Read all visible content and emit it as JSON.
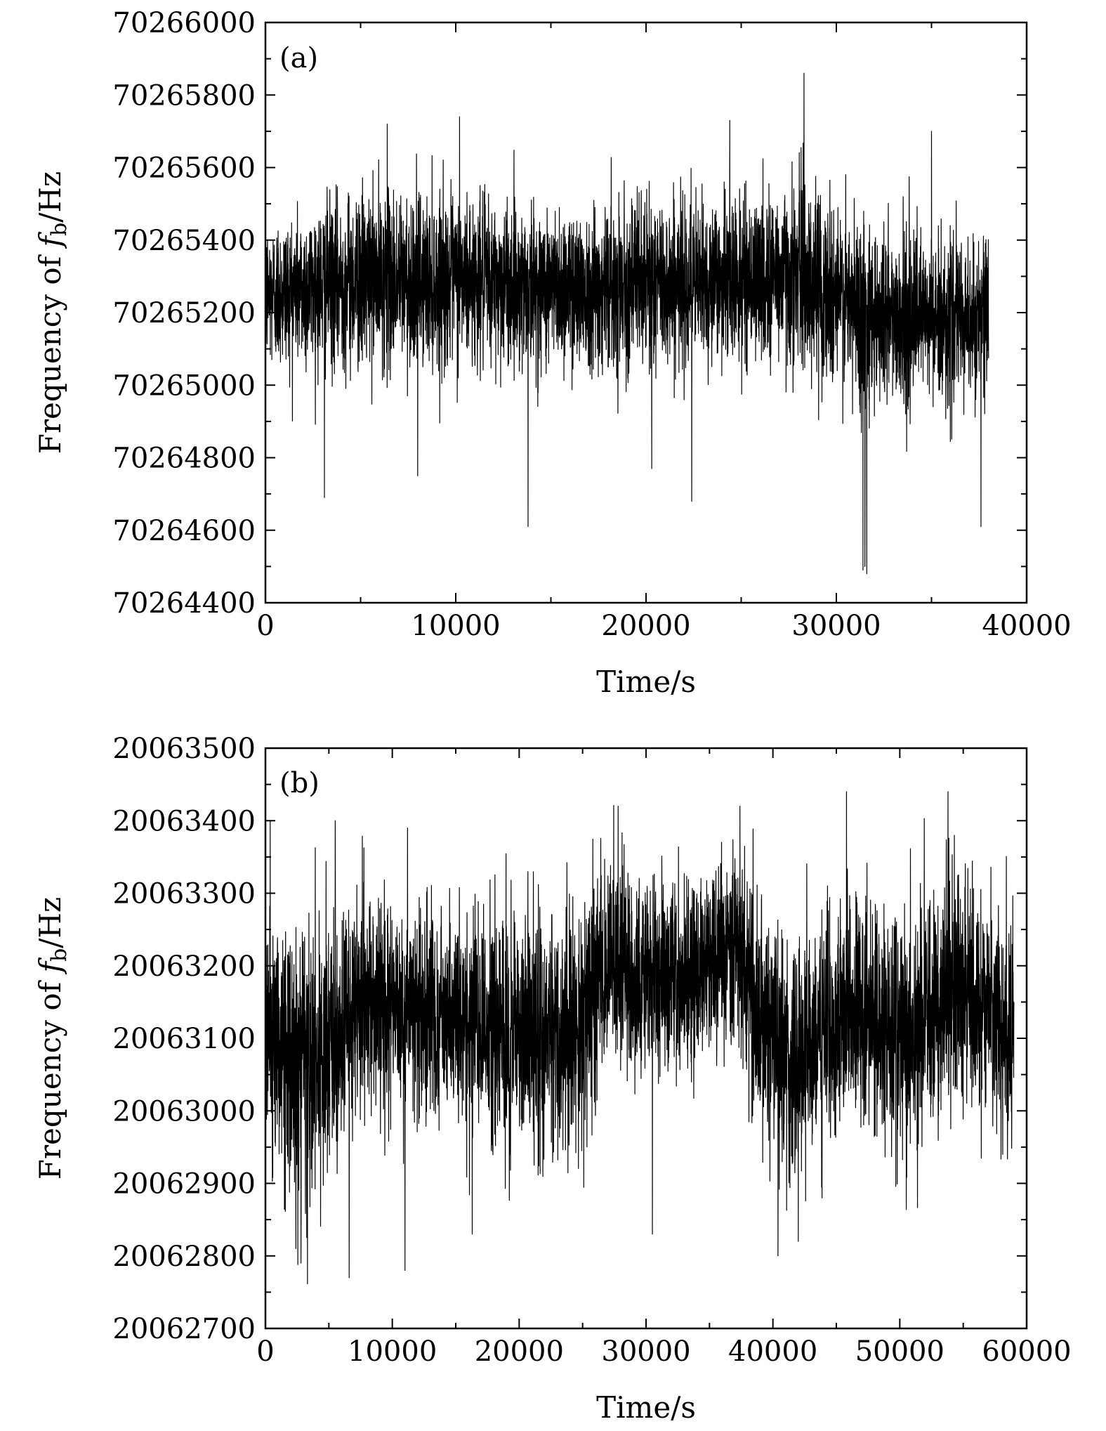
{
  "chart_data": [
    {
      "type": "line",
      "panel_label": "(a)",
      "xlabel": "Time/s",
      "ylabel_prefix": "Frequency of ",
      "ylabel_var": "f",
      "ylabel_sub": "b",
      "ylabel_unit": "/Hz",
      "xlim": [
        0,
        40000
      ],
      "ylim": [
        70264400,
        70266000
      ],
      "x_ticks": [
        "0",
        "10000",
        "20000",
        "30000",
        "40000"
      ],
      "y_ticks": [
        "70264400",
        "70264600",
        "70264800",
        "70265000",
        "70265200",
        "70265400",
        "70265600",
        "70265800",
        "70266000"
      ],
      "color": "#000000",
      "series": [
        {
          "x_range": [
            0,
            38000
          ],
          "mean": 70265250,
          "noise_amplitude": 150,
          "envelope": [
            [
              0,
              70265250,
              130
            ],
            [
              5000,
              70265290,
              160
            ],
            [
              10000,
              70265290,
              150
            ],
            [
              15000,
              70265270,
              140
            ],
            [
              20000,
              70265280,
              150
            ],
            [
              25000,
              70265290,
              140
            ],
            [
              28000,
              70265310,
              170
            ],
            [
              31000,
              70265210,
              170
            ],
            [
              34000,
              70265180,
              150
            ],
            [
              38000,
              70265180,
              140
            ]
          ],
          "spikes": [
            [
              28300,
              70265860
            ],
            [
              10200,
              70265740
            ],
            [
              24400,
              70265730
            ],
            [
              6400,
              70265720
            ],
            [
              35000,
              70265700
            ],
            [
              13800,
              70264610
            ],
            [
              22400,
              70264680
            ],
            [
              3100,
              70264690
            ],
            [
              37600,
              70264610
            ],
            [
              31400,
              70264490
            ],
            [
              31600,
              70264480
            ],
            [
              31500,
              70264500
            ],
            [
              8000,
              70264750
            ],
            [
              20300,
              70264770
            ]
          ]
        }
      ]
    },
    {
      "type": "line",
      "panel_label": "(b)",
      "xlabel": "Time/s",
      "ylabel_prefix": "Frequency of ",
      "ylabel_var": "f",
      "ylabel_sub": "b",
      "ylabel_unit": "/Hz",
      "xlim": [
        0,
        60000
      ],
      "ylim": [
        20062700,
        20063500
      ],
      "x_ticks": [
        "0",
        "10000",
        "20000",
        "30000",
        "40000",
        "50000",
        "60000"
      ],
      "y_ticks": [
        "20062700",
        "20062800",
        "20062900",
        "20063000",
        "20063100",
        "20063200",
        "20063300",
        "20063400",
        "20063500"
      ],
      "color": "#000000",
      "series": [
        {
          "x_range": [
            0,
            59000
          ],
          "mean": 20063150,
          "noise_amplitude": 100,
          "envelope": [
            [
              0,
              20063120,
              110
            ],
            [
              3000,
              20063040,
              120
            ],
            [
              8000,
              20063150,
              100
            ],
            [
              15000,
              20063120,
              100
            ],
            [
              24000,
              20063100,
              110
            ],
            [
              27000,
              20063200,
              90
            ],
            [
              33000,
              20063180,
              90
            ],
            [
              37000,
              20063220,
              90
            ],
            [
              41000,
              20063060,
              110
            ],
            [
              46000,
              20063150,
              100
            ],
            [
              50000,
              20063100,
              110
            ],
            [
              55000,
              20063170,
              100
            ],
            [
              59000,
              20063100,
              110
            ]
          ],
          "spikes": [
            [
              45800,
              20063440
            ],
            [
              53800,
              20063440
            ],
            [
              27800,
              20063420
            ],
            [
              37400,
              20063420
            ],
            [
              5500,
              20063400
            ],
            [
              11200,
              20063390
            ],
            [
              6600,
              20062770
            ],
            [
              11000,
              20062780
            ],
            [
              2800,
              20062790
            ],
            [
              40400,
              20062800
            ],
            [
              2400,
              20062810
            ],
            [
              42000,
              20062820
            ],
            [
              16300,
              20062830
            ],
            [
              30500,
              20062830
            ]
          ]
        }
      ]
    }
  ]
}
